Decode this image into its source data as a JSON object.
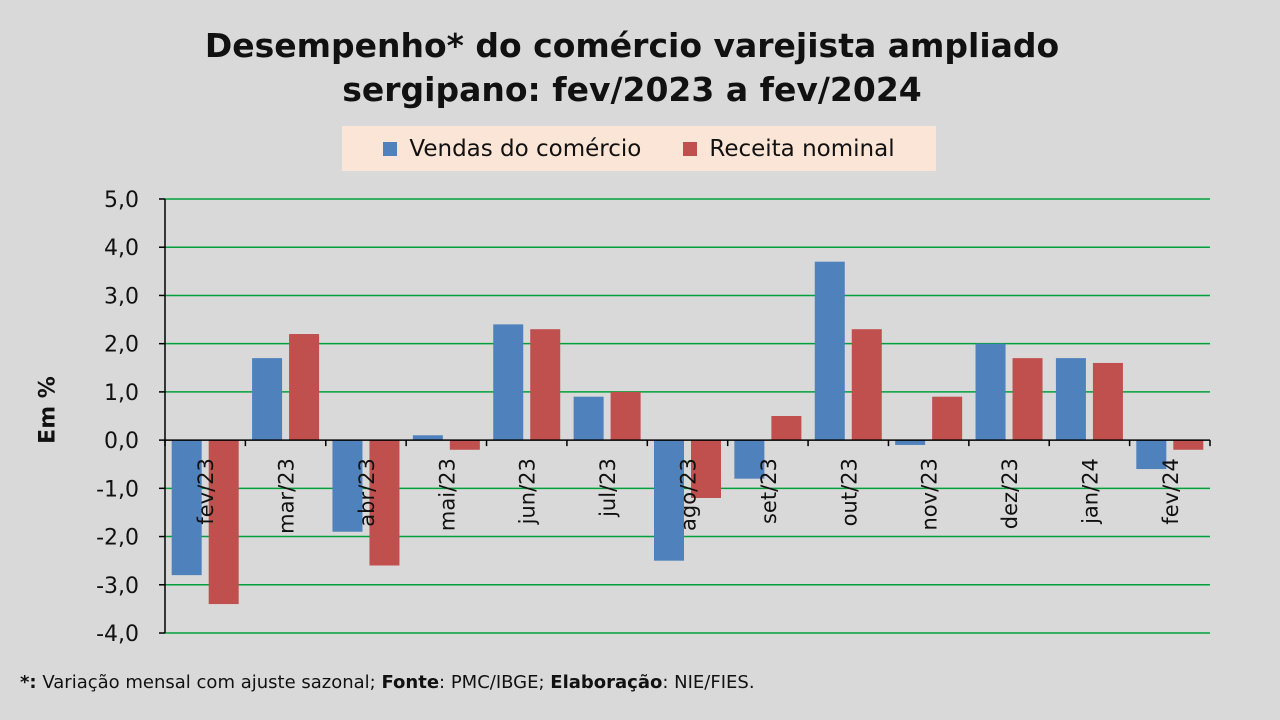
{
  "chart_data": {
    "type": "bar",
    "title_lines": [
      "Desempenho* do comércio varejista ampliado",
      "sergipano: fev/2023 a fev/2024"
    ],
    "ylabel": "Em %",
    "ylim": [
      -4.0,
      5.0
    ],
    "yticks": [
      "5,0",
      "4,0",
      "3,0",
      "2,0",
      "1,0",
      "0,0",
      "-1,0",
      "-2,0",
      "-3,0",
      "-4,0"
    ],
    "ytick_values": [
      5,
      4,
      3,
      2,
      1,
      0,
      -1,
      -2,
      -3,
      -4
    ],
    "grid": true,
    "legend_position": "top-center",
    "categories": [
      "fev/23",
      "mar/23",
      "abr/23",
      "mai/23",
      "jun/23",
      "jul/23",
      "ago/23",
      "set/23",
      "out/23",
      "nov/23",
      "dez/23",
      "jan/24",
      "fev/24"
    ],
    "series": [
      {
        "name": "Vendas do comércio",
        "color": "#4f81bd",
        "values": [
          -2.8,
          1.7,
          -1.9,
          0.1,
          2.4,
          0.9,
          -2.5,
          -0.8,
          3.7,
          -0.1,
          2.0,
          1.7,
          -0.6
        ]
      },
      {
        "name": "Receita nominal",
        "color": "#c0504d",
        "values": [
          -3.4,
          2.2,
          -2.6,
          -0.2,
          2.3,
          1.0,
          -1.2,
          0.5,
          2.3,
          0.9,
          1.7,
          1.6,
          -0.2
        ]
      }
    ]
  },
  "footnote": {
    "star": "*:",
    "text1": " Variação mensal com ajuste sazonal; ",
    "fonte_label": "Fonte",
    "text2": ": PMC/IBGE; ",
    "elab_label": "Elaboração",
    "text3": ": NIE/FIES."
  },
  "colors": {
    "grid": "#00a03c",
    "axis": "#000000"
  }
}
